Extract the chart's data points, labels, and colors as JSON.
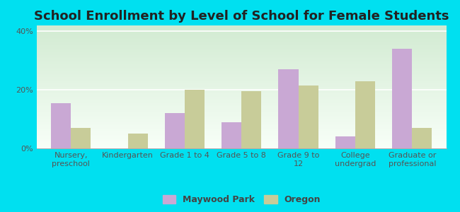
{
  "title": "School Enrollment by Level of School for Female Students",
  "categories": [
    "Nursery,\npreschool",
    "Kindergarten",
    "Grade 1 to 4",
    "Grade 5 to 8",
    "Grade 9 to\n12",
    "College\nundergrad",
    "Graduate or\nprofessional"
  ],
  "maywood_park": [
    15.5,
    0.0,
    12.0,
    9.0,
    27.0,
    4.0,
    34.0
  ],
  "oregon": [
    7.0,
    5.0,
    20.0,
    19.5,
    21.5,
    23.0,
    7.0
  ],
  "maywood_color": "#c9a8d4",
  "oregon_color": "#c8cc99",
  "background_outer": "#00e0f0",
  "ylim": [
    0,
    42
  ],
  "yticks": [
    0,
    20,
    40
  ],
  "ytick_labels": [
    "0%",
    "20%",
    "40%"
  ],
  "legend_labels": [
    "Maywood Park",
    "Oregon"
  ],
  "title_fontsize": 13,
  "tick_fontsize": 8,
  "legend_fontsize": 9,
  "bar_width": 0.35
}
